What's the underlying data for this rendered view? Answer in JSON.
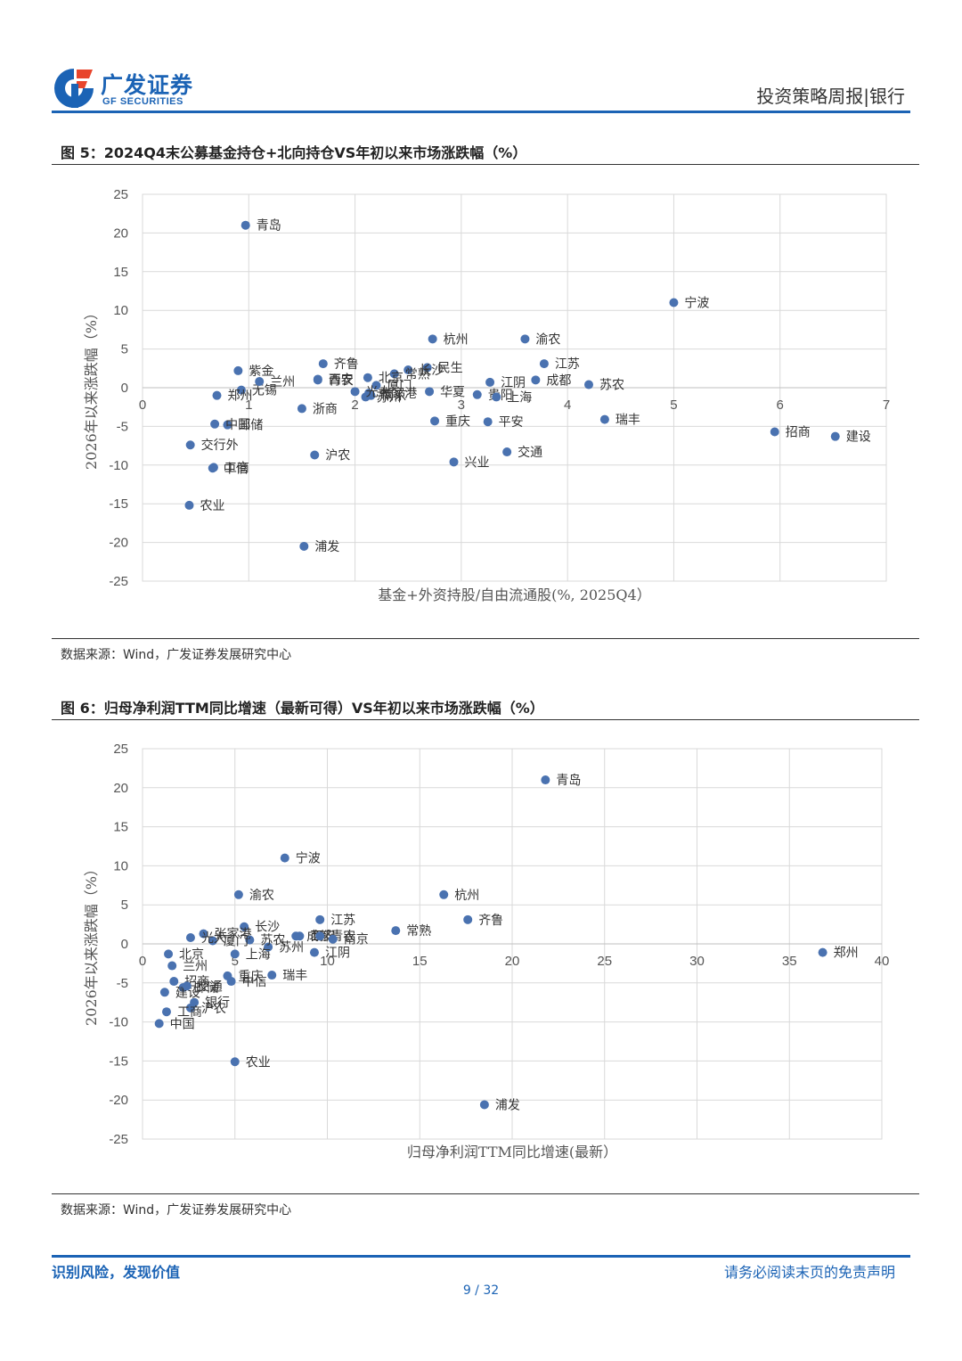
{
  "header": {
    "logo_cn": "广发证券",
    "logo_en": "GF SECURITIES",
    "report_tag": "投资策略周报|银行"
  },
  "footer": {
    "left": "识别风险，发现价值",
    "right": "请务必阅读末页的免责声明",
    "page": "9 / 32"
  },
  "colors": {
    "brand": "#1b63b5",
    "point": "#4a72b0",
    "grid": "#d9d9d9"
  },
  "chart_data": [
    {
      "type": "scatter",
      "title": "图 5：2024Q4末公募基金持仓+北向持仓VS年初以来市场涨跌幅（%）",
      "xlabel": "基金+外资持股/自由流通股(%, 2025Q4）",
      "ylabel": "2026年以来涨跌幅（%）",
      "xlim": [
        0,
        7
      ],
      "ylim": [
        -25,
        25
      ],
      "xticks": [
        0,
        1,
        2,
        3,
        4,
        5,
        6,
        7
      ],
      "yticks": [
        25,
        20,
        15,
        10,
        5,
        0,
        -5,
        -10,
        -15,
        -20,
        -25
      ],
      "source": "数据来源：Wind，广发证券发展研究中心",
      "points": [
        {
          "name": "青岛",
          "x": 0.97,
          "y": 21.0
        },
        {
          "name": "宁波",
          "x": 5.0,
          "y": 11.0
        },
        {
          "name": "招商",
          "x": 5.95,
          "y": -5.7
        },
        {
          "name": "建设",
          "x": 6.52,
          "y": -6.3
        },
        {
          "name": "渝农",
          "x": 3.6,
          "y": 6.3
        },
        {
          "name": "江苏",
          "x": 3.78,
          "y": 3.1
        },
        {
          "name": "成都",
          "x": 3.7,
          "y": 1.0
        },
        {
          "name": "苏农",
          "x": 4.2,
          "y": 0.4
        },
        {
          "name": "瑞丰",
          "x": 4.35,
          "y": -4.1
        },
        {
          "name": "杭州",
          "x": 2.73,
          "y": 6.3
        },
        {
          "name": "民生",
          "x": 2.68,
          "y": 2.6
        },
        {
          "name": "长沙",
          "x": 2.5,
          "y": 2.3
        },
        {
          "name": "常熟",
          "x": 2.37,
          "y": 1.8
        },
        {
          "name": "厦门",
          "x": 2.2,
          "y": 0.3
        },
        {
          "name": "张家港",
          "x": 2.13,
          "y": -0.7
        },
        {
          "name": "华夏",
          "x": 2.7,
          "y": -0.5
        },
        {
          "name": "江阴",
          "x": 3.27,
          "y": 0.7
        },
        {
          "name": "贵阳",
          "x": 3.15,
          "y": -0.9
        },
        {
          "name": "上海",
          "x": 3.33,
          "y": -1.2
        },
        {
          "name": "重庆",
          "x": 2.75,
          "y": -4.3
        },
        {
          "name": "平安",
          "x": 3.25,
          "y": -4.4
        },
        {
          "name": "交通",
          "x": 3.43,
          "y": -8.3
        },
        {
          "name": "兴业",
          "x": 2.93,
          "y": -9.6
        },
        {
          "name": "苏州",
          "x": 2.1,
          "y": -1.2
        },
        {
          "name": "南京",
          "x": 2.15,
          "y": -1.0
        },
        {
          "name": "北京",
          "x": 2.12,
          "y": 1.3
        },
        {
          "name": "光大",
          "x": 2.0,
          "y": -0.5
        },
        {
          "name": "青农",
          "x": 1.65,
          "y": 1.0
        },
        {
          "name": "浙商",
          "x": 1.5,
          "y": -2.7
        },
        {
          "name": "沪农",
          "x": 1.62,
          "y": -8.7
        },
        {
          "name": "浦发",
          "x": 1.52,
          "y": -20.5
        },
        {
          "name": "西安",
          "x": 1.65,
          "y": 1.1
        },
        {
          "name": "齐鲁",
          "x": 1.7,
          "y": 3.1
        },
        {
          "name": "紫金",
          "x": 0.9,
          "y": 2.2
        },
        {
          "name": "无锡",
          "x": 0.93,
          "y": -0.3
        },
        {
          "name": "兰州",
          "x": 1.1,
          "y": 0.8
        },
        {
          "name": "郑州",
          "x": 0.7,
          "y": -1.0
        },
        {
          "name": "邮储",
          "x": 0.8,
          "y": -4.8
        },
        {
          "name": "中国",
          "x": 0.68,
          "y": -4.7
        },
        {
          "name": "交行外",
          "x": 0.45,
          "y": -7.4
        },
        {
          "name": "工商",
          "x": 0.67,
          "y": -10.3
        },
        {
          "name": "中信",
          "x": 0.66,
          "y": -10.4
        },
        {
          "name": "农业",
          "x": 0.44,
          "y": -15.2
        }
      ]
    },
    {
      "type": "scatter",
      "title": "图 6：归母净利润TTM同比增速（最新可得）VS年初以来市场涨跌幅（%）",
      "xlabel": "归母净利润TTM同比增速(最新）",
      "ylabel": "2026年以来涨跌幅（%）",
      "xlim": [
        0,
        40
      ],
      "ylim": [
        -25,
        25
      ],
      "xticks": [
        0,
        5,
        10,
        15,
        20,
        25,
        30,
        35,
        40
      ],
      "yticks": [
        25,
        20,
        15,
        10,
        5,
        0,
        -5,
        -10,
        -15,
        -20,
        -25
      ],
      "source": "数据来源：Wind，广发证券发展研究中心",
      "points": [
        {
          "name": "青岛",
          "x": 21.8,
          "y": 21.0
        },
        {
          "name": "郑州",
          "x": 36.8,
          "y": -1.1
        },
        {
          "name": "杭州",
          "x": 16.3,
          "y": 6.3
        },
        {
          "name": "齐鲁",
          "x": 17.6,
          "y": 3.1
        },
        {
          "name": "常熟",
          "x": 13.7,
          "y": 1.7
        },
        {
          "name": "浦发",
          "x": 18.5,
          "y": -20.6
        },
        {
          "name": "宁波",
          "x": 7.7,
          "y": 11.0
        },
        {
          "name": "西安",
          "x": 8.5,
          "y": 1.0
        },
        {
          "name": "成都",
          "x": 8.3,
          "y": 1.0
        },
        {
          "name": "江苏",
          "x": 9.6,
          "y": 3.1
        },
        {
          "name": "青农",
          "x": 9.6,
          "y": 1.0
        },
        {
          "name": "南京",
          "x": 10.3,
          "y": 0.6
        },
        {
          "name": "江阴",
          "x": 9.3,
          "y": -1.1
        },
        {
          "name": "苏州",
          "x": 6.8,
          "y": -0.4
        },
        {
          "name": "瑞丰",
          "x": 7.0,
          "y": -4.0
        },
        {
          "name": "苏农",
          "x": 5.8,
          "y": 0.5
        },
        {
          "name": "渝农",
          "x": 5.2,
          "y": 6.3
        },
        {
          "name": "长沙",
          "x": 5.5,
          "y": 2.2
        },
        {
          "name": "重庆",
          "x": 4.6,
          "y": -4.1
        },
        {
          "name": "中信",
          "x": 4.8,
          "y": -4.8
        },
        {
          "name": "上海",
          "x": 5.0,
          "y": -1.3
        },
        {
          "name": "厦门",
          "x": 3.8,
          "y": 0.4
        },
        {
          "name": "张家港",
          "x": 3.3,
          "y": 1.3
        },
        {
          "name": "光大",
          "x": 2.6,
          "y": 0.8
        },
        {
          "name": "北京",
          "x": 1.4,
          "y": -1.3
        },
        {
          "name": "兰州",
          "x": 1.6,
          "y": -2.8
        },
        {
          "name": "招商",
          "x": 1.7,
          "y": -4.8
        },
        {
          "name": "邮储",
          "x": 2.2,
          "y": -5.6
        },
        {
          "name": "建设",
          "x": 1.2,
          "y": -6.2
        },
        {
          "name": "银行",
          "x": 2.8,
          "y": -7.5
        },
        {
          "name": "沪农",
          "x": 2.6,
          "y": -8.2
        },
        {
          "name": "工商",
          "x": 1.3,
          "y": -8.7
        },
        {
          "name": "中国",
          "x": 0.9,
          "y": -10.2
        },
        {
          "name": "农业",
          "x": 5.0,
          "y": -15.1
        },
        {
          "name": "交通",
          "x": 2.4,
          "y": -5.4
        }
      ]
    }
  ]
}
